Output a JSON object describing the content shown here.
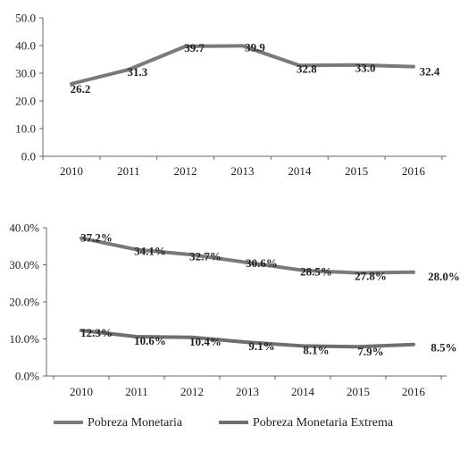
{
  "chart_data": [
    {
      "type": "line",
      "x": [
        "2010",
        "2011",
        "2012",
        "2013",
        "2014",
        "2015",
        "2016"
      ],
      "ylim": [
        0,
        50
      ],
      "yticks": [
        "0.0",
        "10.0",
        "20.0",
        "30.0",
        "40.0",
        "50.0"
      ],
      "series": [
        {
          "values": [
            26.2,
            31.3,
            39.7,
            39.9,
            32.8,
            33.0,
            32.4
          ],
          "labels": [
            "26.2",
            "31.3",
            "39.7",
            "39.9",
            "32.8",
            "33.0",
            "32.4"
          ],
          "color": "#7a7a7a"
        }
      ]
    },
    {
      "type": "line",
      "x": [
        "2010",
        "2011",
        "2012",
        "2013",
        "2014",
        "2015",
        "2016"
      ],
      "ylim": [
        0,
        40
      ],
      "yticks": [
        "0.0%",
        "10.0%",
        "20.0%",
        "30.0%",
        "40.0%"
      ],
      "series": [
        {
          "name": "Pobreza Monetaria",
          "values": [
            37.2,
            34.1,
            32.7,
            30.6,
            28.5,
            27.8,
            28.0
          ],
          "labels": [
            "37.2%",
            "34.1%",
            "32.7%",
            "30.6%",
            "28.5%",
            "27.8%",
            "28.0%"
          ],
          "color": "#7a7a7a"
        },
        {
          "name": "Pobreza Monetaria Extrema",
          "values": [
            12.3,
            10.6,
            10.4,
            9.1,
            8.1,
            7.9,
            8.5
          ],
          "labels": [
            "12.3%",
            "10.6%",
            "10.4%",
            "9.1%",
            "8.1%",
            "7.9%",
            "8.5%"
          ],
          "color": "#6f6f6f"
        }
      ],
      "legend": "bottom"
    }
  ]
}
